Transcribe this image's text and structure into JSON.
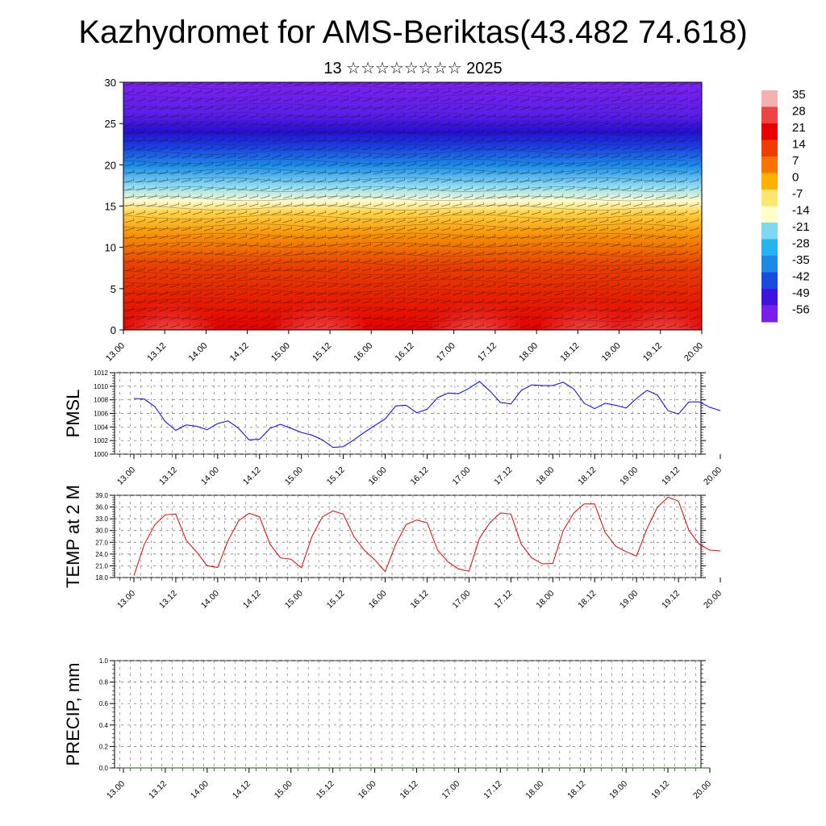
{
  "title": "Kazhydromet for AMS-Beriktas(43.482 74.618)",
  "subtitle": "13 ☆☆☆☆☆☆☆☆ 2025",
  "x_ticks": [
    "13.00",
    "13.12",
    "14.00",
    "14.12",
    "15.00",
    "15.12",
    "16.00",
    "16.12",
    "17.00",
    "17.12",
    "18.00",
    "18.12",
    "19.00",
    "19.12",
    "20.00"
  ],
  "colorbar": {
    "labels": [
      "35",
      "28",
      "21",
      "14",
      "7",
      "0",
      "-7",
      "-14",
      "-21",
      "-28",
      "-35",
      "-42",
      "-49",
      "-56"
    ],
    "colors": [
      "#f6b0b0",
      "#ee4444",
      "#e60000",
      "#f03c00",
      "#f77400",
      "#ffb000",
      "#ffe66e",
      "#ffffcc",
      "#7fd8f0",
      "#22b5ee",
      "#1e88e5",
      "#1a4be0",
      "#3f12e0",
      "#7a1eee"
    ]
  },
  "chart_data": [
    {
      "type": "heatmap",
      "name": "cross-section",
      "ylim": [
        0,
        30
      ],
      "y_ticks": [
        0,
        5,
        10,
        15,
        20,
        25,
        30
      ],
      "value_range": [
        -56,
        35
      ]
    },
    {
      "type": "line",
      "ylabel": "PMSL",
      "color": "#0000ff",
      "ylim": [
        1000,
        1012
      ],
      "y_ticks": [
        "1000",
        "1002",
        "1004",
        "1006",
        "1008",
        "1010",
        "1012"
      ],
      "x_hours": [
        0,
        3,
        6,
        9,
        12,
        15,
        18,
        21,
        24,
        27,
        30,
        33,
        36,
        39,
        42,
        45,
        48,
        51,
        54,
        57,
        60,
        63,
        66,
        69,
        72,
        75,
        78,
        81,
        84,
        87,
        90,
        93,
        96,
        99,
        102,
        105,
        108,
        111,
        114,
        117,
        120,
        123,
        126,
        129,
        132,
        135,
        138,
        141,
        144,
        147,
        150,
        153,
        156,
        159,
        162,
        165,
        168
      ],
      "values": [
        1008.2,
        1008.1,
        1007.0,
        1004.8,
        1003.5,
        1004.3,
        1004.1,
        1003.6,
        1004.5,
        1004.9,
        1003.8,
        1002.1,
        1002.2,
        1003.8,
        1004.4,
        1003.8,
        1003.2,
        1002.8,
        1002.1,
        1001.0,
        1001.1,
        1002.1,
        1003.2,
        1004.2,
        1005.2,
        1007.1,
        1007.2,
        1006.1,
        1006.6,
        1008.3,
        1009.0,
        1008.9,
        1009.7,
        1010.7,
        1009.3,
        1007.6,
        1007.4,
        1009.4,
        1010.2,
        1010.1,
        1010.1,
        1010.6,
        1009.6,
        1007.5,
        1006.7,
        1007.5,
        1007.2,
        1006.8,
        1008.2,
        1009.4,
        1008.7,
        1006.4,
        1005.9,
        1007.7,
        1007.7,
        1006.9,
        1006.4
      ]
    },
    {
      "type": "line",
      "ylabel": "TEMP at 2 M",
      "color": "#e60000",
      "ylim": [
        18,
        39
      ],
      "y_ticks": [
        "18.0",
        "21.0",
        "24.0",
        "27.0",
        "30.0",
        "33.0",
        "36.0",
        "39.0"
      ],
      "x_hours": [
        0,
        3,
        6,
        9,
        12,
        15,
        18,
        21,
        24,
        27,
        30,
        33,
        36,
        39,
        42,
        45,
        48,
        51,
        54,
        57,
        60,
        63,
        66,
        69,
        72,
        75,
        78,
        81,
        84,
        87,
        90,
        93,
        96,
        99,
        102,
        105,
        108,
        111,
        114,
        117,
        120,
        123,
        126,
        129,
        132,
        135,
        138,
        141,
        144,
        147,
        150,
        153,
        156,
        159,
        162,
        165,
        168
      ],
      "values": [
        18.5,
        26.5,
        31.5,
        34.0,
        34.2,
        27.5,
        24.5,
        21.0,
        20.6,
        27.5,
        32.5,
        34.4,
        33.5,
        26.5,
        23.0,
        22.7,
        20.5,
        28.5,
        33.5,
        35.0,
        34.2,
        28.5,
        25.0,
        22.5,
        19.5,
        26.5,
        31.5,
        32.7,
        32.0,
        25.0,
        22.0,
        20.2,
        19.6,
        28.0,
        32.0,
        34.5,
        34.2,
        26.5,
        23.0,
        21.5,
        21.6,
        30.0,
        34.5,
        36.8,
        36.8,
        29.5,
        26.0,
        24.6,
        23.5,
        30.5,
        36.0,
        38.5,
        37.5,
        30.0,
        26.5,
        25.0,
        24.8
      ]
    },
    {
      "type": "line",
      "ylabel": "PRECIP, mm",
      "color": "#006400",
      "ylim": [
        0,
        1
      ],
      "y_ticks": [
        "0.0",
        "0.2",
        "0.4",
        "0.6",
        "0.8",
        "1.0"
      ],
      "x_hours": [
        0,
        168
      ],
      "values": [
        0,
        0
      ]
    }
  ]
}
